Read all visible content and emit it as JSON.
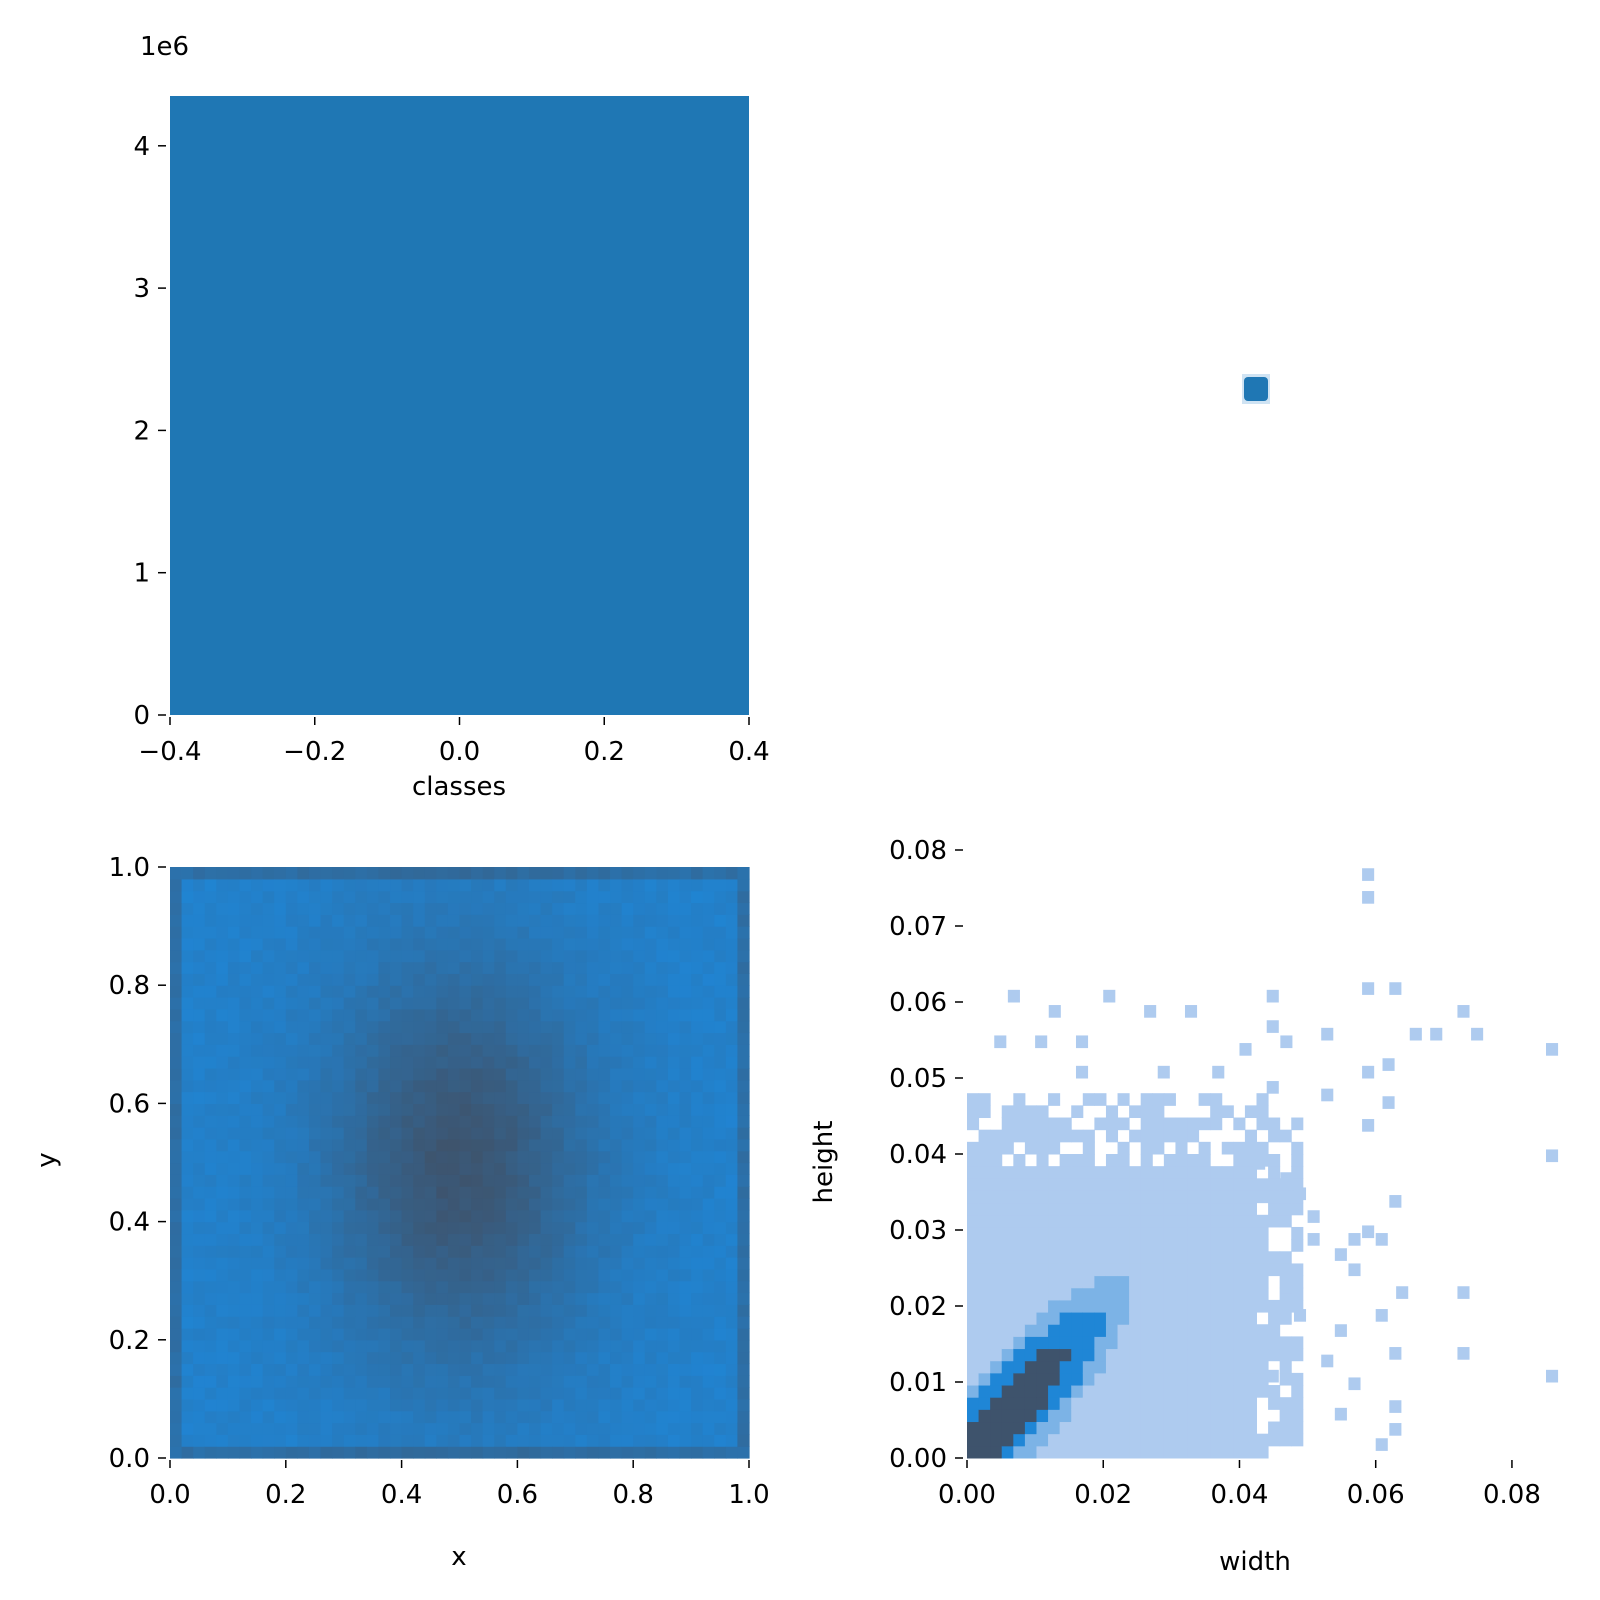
{
  "colors": {
    "bar": "#1f77b4",
    "heat_light": "#aecbef",
    "heat_mid": "#1f86d6",
    "heat_dark": "#3e536c",
    "text": "#000000"
  },
  "chart_data": [
    {
      "id": "classes-histogram",
      "type": "bar",
      "xlabel": "classes",
      "ylabel": "",
      "offset_label": "1e6",
      "xlim": [
        -0.4,
        0.4
      ],
      "ylim": [
        0,
        4.35
      ],
      "x_ticks": [
        -0.4,
        -0.2,
        0.0,
        0.2,
        0.4
      ],
      "x_tick_labels": [
        "−0.4",
        "−0.2",
        "0.0",
        "0.2",
        "0.4"
      ],
      "y_ticks": [
        0,
        1,
        2,
        3,
        4
      ],
      "y_tick_labels": [
        "0",
        "1",
        "2",
        "3",
        "4"
      ],
      "categories": [
        "0"
      ],
      "values": [
        4.35
      ],
      "bar_extent": [
        -0.4,
        0.4
      ],
      "grid": false
    },
    {
      "id": "single-cell-heatmap",
      "type": "heatmap",
      "xlabel": "",
      "ylabel": "",
      "cells": [
        {
          "x": 0.5,
          "y": 0.5,
          "level": 1.0
        }
      ],
      "grid": false
    },
    {
      "id": "xy-histogram",
      "type": "heatmap",
      "xlabel": "x",
      "ylabel": "y",
      "xlim": [
        0.0,
        1.0
      ],
      "ylim": [
        0.0,
        1.0
      ],
      "x_ticks": [
        0.0,
        0.2,
        0.4,
        0.6,
        0.8,
        1.0
      ],
      "x_tick_labels": [
        "0.0",
        "0.2",
        "0.4",
        "0.6",
        "0.8",
        "1.0"
      ],
      "y_ticks": [
        0.0,
        0.2,
        0.4,
        0.6,
        0.8,
        1.0
      ],
      "y_tick_labels": [
        "0.0",
        "0.2",
        "0.4",
        "0.6",
        "0.8",
        "1.0"
      ],
      "bins": 50,
      "density_center": [
        0.5,
        0.5
      ],
      "grid": false
    },
    {
      "id": "width-height-histogram",
      "type": "heatmap",
      "xlabel": "width",
      "ylabel": "height",
      "xlim": [
        0.0,
        0.085
      ],
      "ylim": [
        0.0,
        0.08
      ],
      "x_ticks": [
        0.0,
        0.02,
        0.04,
        0.06,
        0.08
      ],
      "x_tick_labels": [
        "0.00",
        "0.02",
        "0.04",
        "0.06",
        "0.08"
      ],
      "y_ticks": [
        0.0,
        0.01,
        0.02,
        0.03,
        0.04,
        0.05,
        0.06,
        0.07,
        0.08
      ],
      "y_tick_labels": [
        "0.00",
        "0.01",
        "0.02",
        "0.03",
        "0.04",
        "0.05",
        "0.06",
        "0.07",
        "0.08"
      ],
      "bin_size": [
        0.0017,
        0.0016
      ],
      "main_block": {
        "width": [
          0.0,
          0.048
        ],
        "height": [
          0.0,
          0.043
        ]
      },
      "peak": {
        "width": 0.005,
        "height": 0.006
      },
      "grid": false
    }
  ]
}
